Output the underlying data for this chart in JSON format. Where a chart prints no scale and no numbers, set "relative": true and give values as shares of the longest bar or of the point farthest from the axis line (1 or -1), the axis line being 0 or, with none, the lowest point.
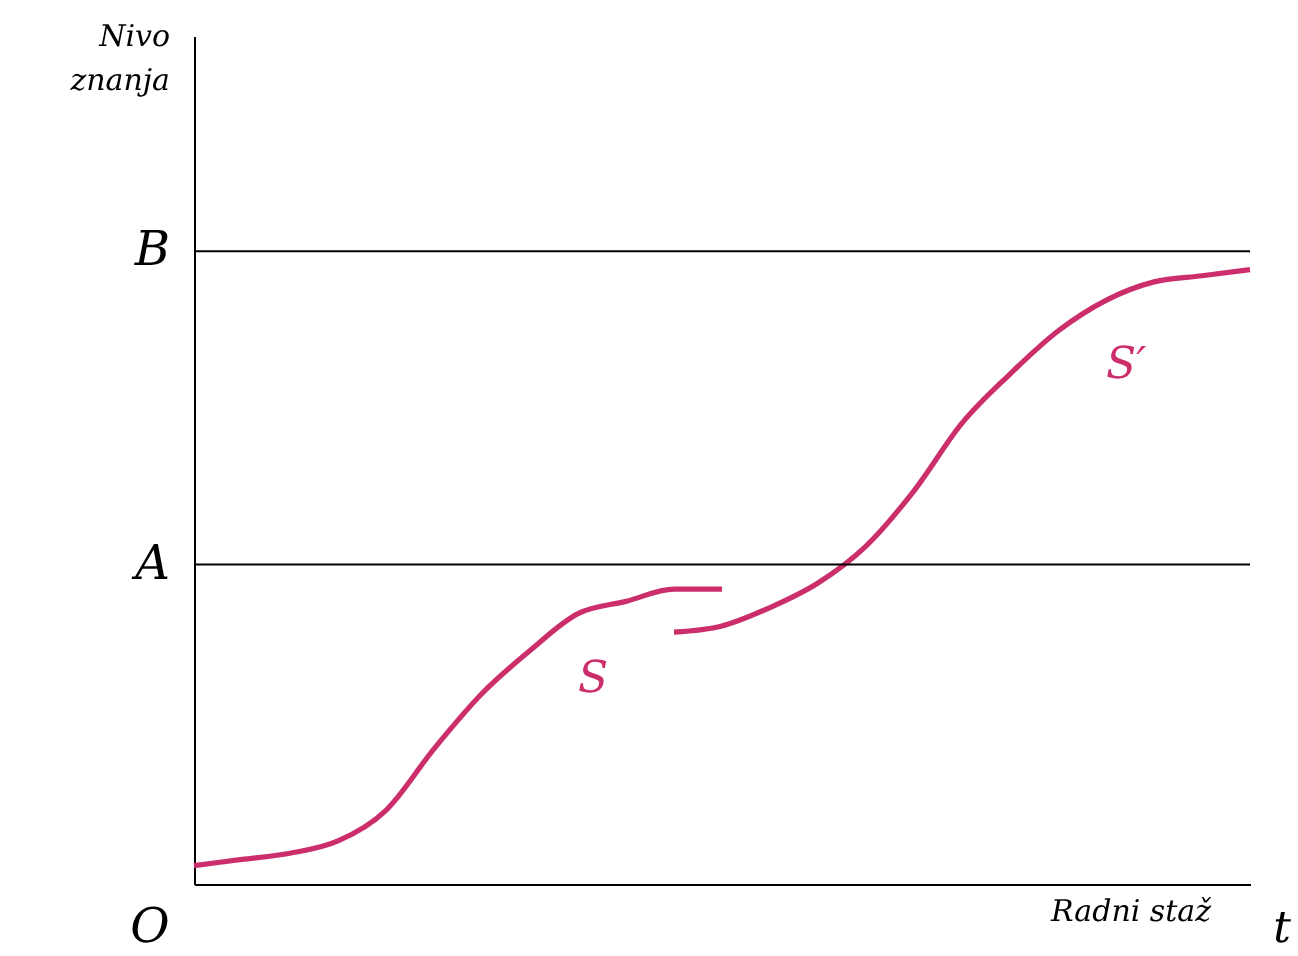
{
  "chart_data": {
    "type": "line",
    "relative": true,
    "xlabel": "Radni staž",
    "annotations": [
      "O",
      "t",
      "Nivo znanja"
    ],
    "categories": [
      null,
      null,
      null,
      null,
      null,
      null,
      null,
      null,
      null,
      null,
      null,
      null,
      null,
      null,
      null,
      null,
      null,
      null,
      null,
      null,
      null,
      null,
      null
    ],
    "series": [
      {
        "name": "S",
        "color": "#cc2e6b",
        "values": [
          0.03,
          0.04,
          0.05,
          0.07,
          0.12,
          0.22,
          0.31,
          0.38,
          0.44,
          0.46,
          0.48,
          0.48,
          null,
          null,
          null,
          null,
          null,
          null,
          null,
          null,
          null,
          null,
          null
        ]
      },
      {
        "name": "S′",
        "color": "#cc2e6b",
        "values": [
          null,
          null,
          null,
          null,
          null,
          null,
          null,
          null,
          null,
          null,
          0.41,
          0.42,
          0.45,
          0.49,
          0.55,
          0.64,
          0.75,
          0.83,
          0.9,
          0.95,
          0.98,
          0.99,
          1
        ]
      }
    ],
    "ref_lines": [
      {
        "axis": "y",
        "value": 1.03,
        "label": "B",
        "color": "#000000"
      },
      {
        "axis": "y",
        "value": 0.52,
        "label": "A",
        "color": "#000000"
      }
    ],
    "grid": false
  }
}
